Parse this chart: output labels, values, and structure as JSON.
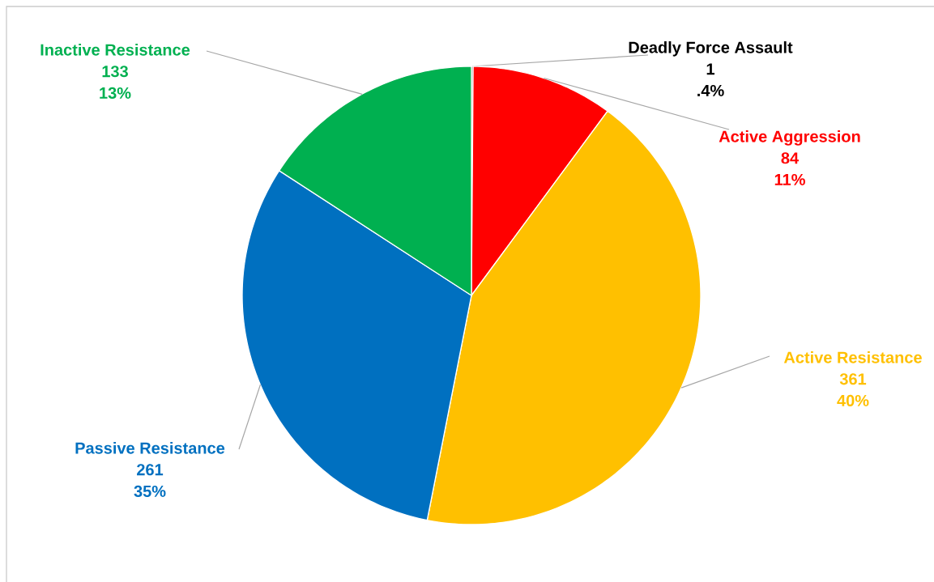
{
  "chart_data": {
    "type": "pie",
    "categories": [
      "Deadly Force Assault",
      "Active Aggression",
      "Active Resistance",
      "Passive Resistance",
      "Inactive Resistance"
    ],
    "values": [
      1,
      84,
      361,
      261,
      133
    ],
    "colors": [
      "#000000",
      "#ff0000",
      "#ffc000",
      "#0070c0",
      "#00b050"
    ],
    "data_labels": true,
    "annotations": [
      {
        "text": ".4%",
        "x": "Deadly Force Assault"
      },
      {
        "text": "11%",
        "x": "Active Aggression"
      },
      {
        "text": "40%",
        "x": "Active Resistance"
      },
      {
        "text": "35%",
        "x": "Passive Resistance"
      },
      {
        "text": "13%",
        "x": "Inactive Resistance"
      }
    ]
  }
}
